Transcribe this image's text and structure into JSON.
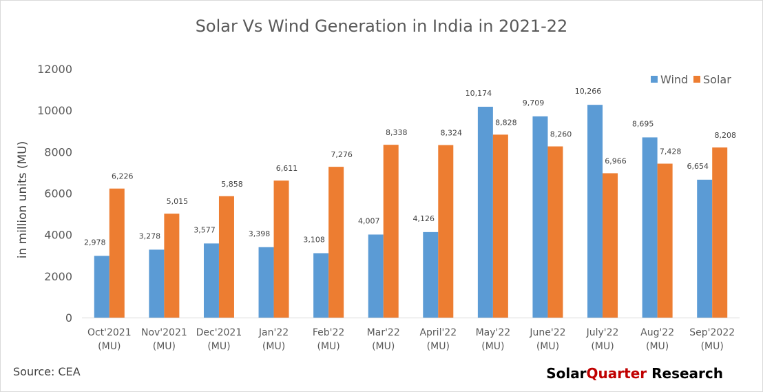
{
  "colors": {
    "wind": "#5b9bd5",
    "solar": "#ed7d31",
    "axis": "#d9d9d9",
    "brand_accent": "#c00000",
    "brand_dark": "#000000"
  },
  "source": "Source: CEA",
  "brand": {
    "part1": "Solar",
    "part2": "Quarter",
    "part3": " Research"
  },
  "chart_data": {
    "type": "bar",
    "title": "Solar Vs Wind Generation in India in 2021-22",
    "xlabel": "",
    "ylabel": "in million units (MU)",
    "ylim": [
      0,
      12000
    ],
    "yticks": [
      "0",
      "2000",
      "4000",
      "6000",
      "8000",
      "10000",
      "12000"
    ],
    "grid": false,
    "legend_position": "top-right",
    "categories": [
      [
        "Oct'2021",
        "(MU)"
      ],
      [
        "Nov'2021",
        "(MU)"
      ],
      [
        "Dec'2021",
        "(MU)"
      ],
      [
        "Jan'22",
        "(MU)"
      ],
      [
        "Feb'22",
        "(MU)"
      ],
      [
        "Mar'22",
        "(MU)"
      ],
      [
        "April'22",
        "(MU)"
      ],
      [
        "May'22",
        "(MU)"
      ],
      [
        "June'22",
        "(MU)"
      ],
      [
        "July'22",
        "(MU)"
      ],
      [
        "Aug'22",
        "(MU)"
      ],
      [
        "Sep'2022",
        "(MU)"
      ]
    ],
    "series": [
      {
        "name": "Wind",
        "values": [
          2978,
          3278,
          3577,
          3398,
          3108,
          4007,
          4126,
          10174,
          9709,
          10266,
          8695,
          6654
        ],
        "labels": [
          "2,978",
          "3,278",
          "3,577",
          "3,398",
          "3,108",
          "4,007",
          "4,126",
          "10,174",
          "9,709",
          "10,266",
          "8,695",
          "6,654"
        ]
      },
      {
        "name": "Solar",
        "values": [
          6226,
          5015,
          5858,
          6611,
          7276,
          8338,
          8324,
          8828,
          8260,
          6966,
          7428,
          8208
        ],
        "labels": [
          "6,226",
          "5,015",
          "5,858",
          "6,611",
          "7,276",
          "8,338",
          "8,324",
          "8,828",
          "8,260",
          "6,966",
          "7,428",
          "8,208"
        ]
      }
    ]
  }
}
